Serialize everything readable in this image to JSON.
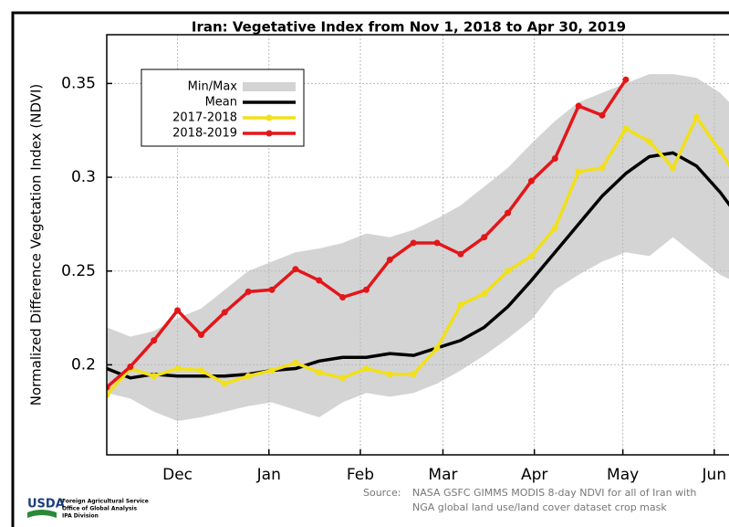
{
  "chart_data": {
    "type": "line",
    "title": "Iran: Vegetative Index from Nov 1, 2018 to Apr 30, 2019",
    "y_label": "Normalized Difference Vegetation Index (NDVI)",
    "x": [
      6,
      14,
      22,
      30,
      38,
      46,
      54,
      62,
      70,
      78,
      86,
      94,
      102,
      110,
      118,
      126,
      134,
      142,
      150,
      158,
      166,
      174,
      182,
      190,
      198,
      206,
      214,
      222
    ],
    "xlim": [
      6,
      217
    ],
    "xticks": [
      {
        "value": 30,
        "label": "Dec"
      },
      {
        "value": 61,
        "label": "Jan"
      },
      {
        "value": 92,
        "label": "Feb"
      },
      {
        "value": 120,
        "label": "Mar"
      },
      {
        "value": 151,
        "label": "Apr"
      },
      {
        "value": 181,
        "label": "May"
      },
      {
        "value": 212,
        "label": "Jun"
      }
    ],
    "ylim": [
      0.152,
      0.376
    ],
    "yticks": [
      0.2,
      0.25,
      0.3,
      0.35
    ],
    "grid": true,
    "legend": "upper left",
    "band": {
      "name": "Min/Max",
      "color": "#d4d4d4",
      "lower": [
        0.185,
        0.182,
        0.175,
        0.17,
        0.172,
        0.175,
        0.178,
        0.18,
        0.176,
        0.172,
        0.18,
        0.185,
        0.183,
        0.185,
        0.19,
        0.197,
        0.205,
        0.214,
        0.224,
        0.24,
        0.248,
        0.255,
        0.26,
        0.258,
        0.268,
        0.258,
        0.248,
        0.242
      ],
      "upper": [
        0.22,
        0.215,
        0.218,
        0.225,
        0.23,
        0.24,
        0.25,
        0.255,
        0.26,
        0.262,
        0.265,
        0.27,
        0.268,
        0.272,
        0.278,
        0.285,
        0.295,
        0.305,
        0.318,
        0.33,
        0.34,
        0.345,
        0.35,
        0.355,
        0.355,
        0.353,
        0.345,
        0.332
      ]
    },
    "series": [
      {
        "name": "Mean",
        "color": "#000000",
        "markers": false,
        "values": [
          0.198,
          0.193,
          0.195,
          0.194,
          0.194,
          0.194,
          0.195,
          0.197,
          0.198,
          0.202,
          0.204,
          0.204,
          0.206,
          0.205,
          0.209,
          0.213,
          0.22,
          0.231,
          0.245,
          0.26,
          0.275,
          0.29,
          0.302,
          0.311,
          0.313,
          0.306,
          0.292,
          0.275
        ]
      },
      {
        "name": "2017-2018",
        "color": "#f2e01a",
        "markers": true,
        "values": [
          0.184,
          0.198,
          0.194,
          0.198,
          0.197,
          0.19,
          0.194,
          0.197,
          0.201,
          0.196,
          0.193,
          0.198,
          0.195,
          0.195,
          0.209,
          0.232,
          0.238,
          0.25,
          0.258,
          0.273,
          0.303,
          0.305,
          0.326,
          0.319,
          0.305,
          0.332,
          0.314,
          0.295
        ]
      },
      {
        "name": "2018-2019",
        "color": "#e3161a",
        "markers": true,
        "values": [
          0.188,
          0.199,
          0.213,
          0.229,
          0.216,
          0.228,
          0.239,
          0.24,
          0.251,
          0.245,
          0.236,
          0.24,
          0.256,
          0.265,
          0.265,
          0.259,
          0.268,
          0.281,
          0.298,
          0.31,
          0.338,
          0.333,
          0.352,
          null,
          null,
          null,
          null,
          null
        ]
      }
    ],
    "source_label": "Source:",
    "source_lines": [
      "NASA GSFC GIMMS MODIS 8-day NDVI for all of Iran with",
      "NGA global land use/land cover dataset crop mask"
    ],
    "logo": {
      "name": "USDA",
      "lines": [
        "Foreign Agricultural Service",
        "Office of Global Analysis",
        "IPA Division"
      ]
    }
  }
}
